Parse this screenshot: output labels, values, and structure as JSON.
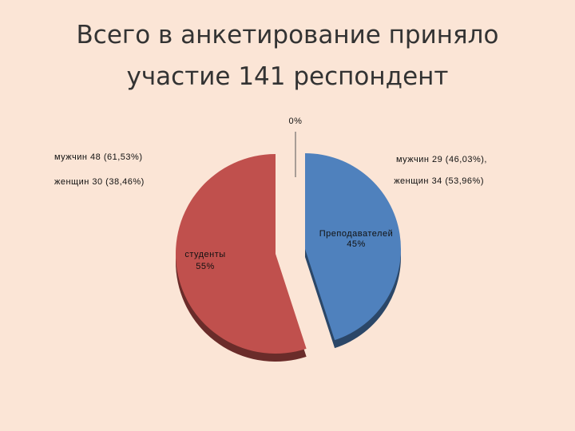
{
  "chart_data": {
    "type": "pie",
    "title": "Всего в анкетирование приняло участие 141 респондент",
    "categories": [
      null,
      "Преподавателей",
      "студенты"
    ],
    "values": [
      0,
      45,
      55
    ],
    "value_labels": [
      "0%",
      "45%",
      "55%"
    ],
    "colors": [
      null,
      "#4f81bd",
      "#c0504d"
    ],
    "annotations": [
      "мужчин 48 (61,53%)",
      "женщин 30 (38,46%)",
      "мужчин 29 (46,03%),",
      "женщин 34 (53,96%)"
    ]
  }
}
